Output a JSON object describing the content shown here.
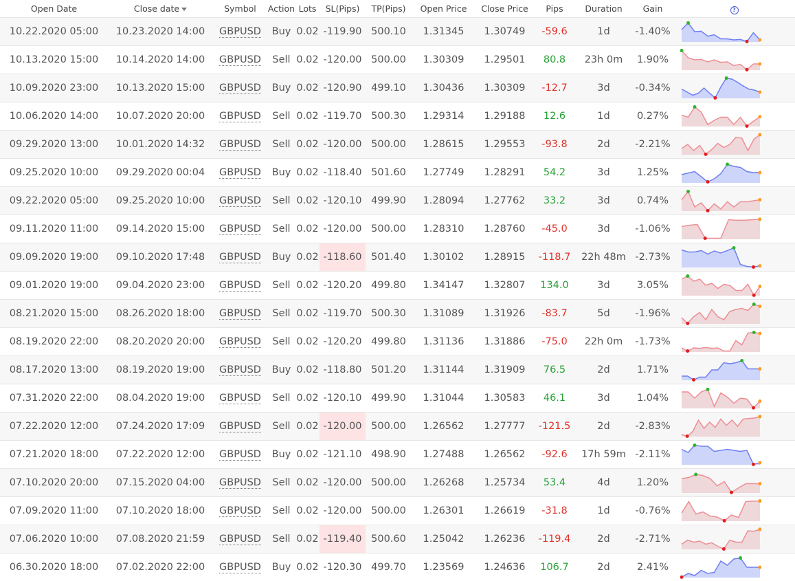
{
  "headers": {
    "open_date": "Open Date",
    "close_date": "Close date",
    "symbol": "Symbol",
    "action": "Action",
    "lots": "Lots",
    "sl": "SL(Pips)",
    "tp": "TP(Pips)",
    "open_price": "Open Price",
    "close_price": "Close Price",
    "pips": "Pips",
    "duration": "Duration",
    "gain": "Gain",
    "help_icon": "?"
  },
  "colors": {
    "buy_line": "#6f7ff0",
    "buy_fill": "#cdd5fb",
    "sell_line": "#ee8e95",
    "sell_fill": "#efd8da",
    "max_point": "#2fb42f",
    "min_point": "#e01f1f",
    "end_point": "#ff9a1f"
  },
  "trades": [
    {
      "open_date": "10.22.2020 05:00",
      "close_date": "10.23.2020 14:00",
      "symbol": "GBPUSD",
      "action": "Buy",
      "lots": "0.02",
      "sl": "-119.90",
      "tp": "500.10",
      "open_price": "1.31345",
      "close_price": "1.30749",
      "pips": "-59.6",
      "duration": "1d",
      "gain": "-1.40%",
      "sl_highlight": false,
      "spark": [
        0.6,
        0.92,
        0.5,
        0.52,
        0.28,
        0.35,
        0.15,
        0.15,
        0.1,
        0.12,
        0.02,
        0.45,
        0.1
      ]
    },
    {
      "open_date": "10.13.2020 15:00",
      "close_date": "10.14.2020 14:00",
      "symbol": "GBPUSD",
      "action": "Sell",
      "lots": "0.02",
      "sl": "-120.00",
      "tp": "500.00",
      "open_price": "1.30309",
      "close_price": "1.29501",
      "pips": "80.8",
      "duration": "23h 0m",
      "gain": "1.90%",
      "sl_highlight": false,
      "spark": [
        0.95,
        0.6,
        0.5,
        0.52,
        0.4,
        0.5,
        0.38,
        0.4,
        0.22,
        0.28,
        0.02,
        0.3,
        0.3
      ]
    },
    {
      "open_date": "10.09.2020 23:00",
      "close_date": "10.13.2020 15:00",
      "symbol": "GBPUSD",
      "action": "Buy",
      "lots": "0.02",
      "sl": "-120.90",
      "tp": "499.10",
      "open_price": "1.30436",
      "close_price": "1.30309",
      "pips": "-12.7",
      "duration": "3d",
      "gain": "-0.34%",
      "sl_highlight": false,
      "spark": [
        0.45,
        0.3,
        0.15,
        0.25,
        0.5,
        0.25,
        0.02,
        0.55,
        0.98,
        0.93,
        0.78,
        0.6,
        0.45,
        0.4,
        0.3
      ]
    },
    {
      "open_date": "10.06.2020 14:00",
      "close_date": "10.07.2020 20:00",
      "symbol": "GBPUSD",
      "action": "Sell",
      "lots": "0.02",
      "sl": "-119.70",
      "tp": "500.30",
      "open_price": "1.29314",
      "close_price": "1.29188",
      "pips": "12.6",
      "duration": "1d",
      "gain": "0.27%",
      "sl_highlight": false,
      "spark": [
        0.55,
        0.45,
        0.95,
        0.7,
        0.1,
        0.3,
        0.45,
        0.45,
        0.1,
        0.45,
        0.02,
        0.25,
        0.48
      ]
    },
    {
      "open_date": "09.29.2020 13:00",
      "close_date": "10.01.2020 14:32",
      "symbol": "GBPUSD",
      "action": "Sell",
      "lots": "0.02",
      "sl": "-120.00",
      "tp": "500.00",
      "open_price": "1.28615",
      "close_price": "1.29553",
      "pips": "-93.8",
      "duration": "2d",
      "gain": "-2.21%",
      "sl_highlight": false,
      "spark": [
        0.3,
        0.5,
        0.2,
        0.45,
        0.02,
        0.25,
        0.55,
        0.35,
        0.5,
        0.85,
        0.8,
        0.2,
        0.75,
        0.97
      ]
    },
    {
      "open_date": "09.25.2020 10:00",
      "close_date": "09.29.2020 00:04",
      "symbol": "GBPUSD",
      "action": "Buy",
      "lots": "0.02",
      "sl": "-118.40",
      "tp": "501.60",
      "open_price": "1.27749",
      "close_price": "1.28291",
      "pips": "54.2",
      "duration": "3d",
      "gain": "1.25%",
      "sl_highlight": false,
      "spark": [
        0.4,
        0.48,
        0.55,
        0.3,
        0.05,
        0.2,
        0.45,
        0.9,
        0.8,
        0.75,
        0.55,
        0.5,
        0.5
      ]
    },
    {
      "open_date": "09.22.2020 05:00",
      "close_date": "09.25.2020 10:00",
      "symbol": "GBPUSD",
      "action": "Sell",
      "lots": "0.02",
      "sl": "-120.10",
      "tp": "499.90",
      "open_price": "1.28094",
      "close_price": "1.27762",
      "pips": "33.2",
      "duration": "3d",
      "gain": "0.74%",
      "sl_highlight": false,
      "spark": [
        0.55,
        0.95,
        0.2,
        0.4,
        0.02,
        0.35,
        0.1,
        0.45,
        0.2,
        0.45,
        0.45,
        0.5,
        0.55
      ]
    },
    {
      "open_date": "09.11.2020 11:00",
      "close_date": "09.14.2020 15:00",
      "symbol": "GBPUSD",
      "action": "Sell",
      "lots": "0.02",
      "sl": "-120.00",
      "tp": "500.00",
      "open_price": "1.28310",
      "close_price": "1.28760",
      "pips": "-45.0",
      "duration": "3d",
      "gain": "-1.06%",
      "sl_highlight": false,
      "spark": [
        0.62,
        0.68,
        0.72,
        0.05,
        0.05,
        0.05,
        0.95,
        0.92,
        0.92,
        0.95,
        0.97
      ]
    },
    {
      "open_date": "09.09.2020 19:00",
      "close_date": "09.10.2020 17:48",
      "symbol": "GBPUSD",
      "action": "Buy",
      "lots": "0.02",
      "sl": "-118.60",
      "tp": "501.40",
      "open_price": "1.30102",
      "close_price": "1.28915",
      "pips": "-118.7",
      "duration": "22h 48m",
      "gain": "-2.73%",
      "sl_highlight": true,
      "spark": [
        0.85,
        0.75,
        0.75,
        0.82,
        0.65,
        0.8,
        0.7,
        0.82,
        0.95,
        0.15,
        0.05,
        0.02,
        0.08
      ]
    },
    {
      "open_date": "09.01.2020 19:00",
      "close_date": "09.04.2020 23:00",
      "symbol": "GBPUSD",
      "action": "Sell",
      "lots": "0.02",
      "sl": "-120.20",
      "tp": "499.80",
      "open_price": "1.34147",
      "close_price": "1.32807",
      "pips": "134.0",
      "duration": "3d",
      "gain": "3.05%",
      "sl_highlight": false,
      "spark": [
        0.8,
        0.95,
        0.7,
        0.8,
        0.5,
        0.6,
        0.35,
        0.55,
        0.5,
        0.25,
        0.25,
        0.55,
        0.02,
        0.45
      ]
    },
    {
      "open_date": "08.21.2020 15:00",
      "close_date": "08.26.2020 18:00",
      "symbol": "GBPUSD",
      "action": "Sell",
      "lots": "0.02",
      "sl": "-119.70",
      "tp": "500.30",
      "open_price": "1.31089",
      "close_price": "1.31926",
      "pips": "-83.7",
      "duration": "5d",
      "gain": "-1.96%",
      "sl_highlight": false,
      "spark": [
        0.3,
        0.02,
        0.35,
        0.55,
        0.2,
        0.7,
        0.35,
        0.2,
        0.6,
        0.7,
        0.75,
        0.65,
        0.95,
        0.85
      ]
    },
    {
      "open_date": "08.19.2020 22:00",
      "close_date": "08.20.2020 20:00",
      "symbol": "GBPUSD",
      "action": "Sell",
      "lots": "0.02",
      "sl": "-120.20",
      "tp": "499.80",
      "open_price": "1.31136",
      "close_price": "1.31886",
      "pips": "-75.0",
      "duration": "22h 0m",
      "gain": "-1.73%",
      "sl_highlight": false,
      "spark": [
        0.2,
        0.05,
        0.2,
        0.18,
        0.22,
        0.18,
        0.2,
        0.05,
        0.05,
        0.55,
        0.35,
        0.92,
        0.95,
        0.9
      ]
    },
    {
      "open_date": "08.17.2020 13:00",
      "close_date": "08.19.2020 19:00",
      "symbol": "GBPUSD",
      "action": "Buy",
      "lots": "0.02",
      "sl": "-118.80",
      "tp": "501.20",
      "open_price": "1.31144",
      "close_price": "1.31909",
      "pips": "76.5",
      "duration": "2d",
      "gain": "1.71%",
      "sl_highlight": false,
      "spark": [
        0.2,
        0.2,
        0.02,
        0.15,
        0.15,
        0.5,
        0.5,
        0.85,
        0.8,
        0.85,
        0.95,
        0.55,
        0.55,
        0.55
      ]
    },
    {
      "open_date": "07.31.2020 22:00",
      "close_date": "08.04.2020 19:00",
      "symbol": "GBPUSD",
      "action": "Sell",
      "lots": "0.02",
      "sl": "-120.10",
      "tp": "499.90",
      "open_price": "1.31044",
      "close_price": "1.30583",
      "pips": "46.1",
      "duration": "3d",
      "gain": "1.04%",
      "sl_highlight": false,
      "spark": [
        0.8,
        0.8,
        0.5,
        0.8,
        0.92,
        0.1,
        0.75,
        0.55,
        0.25,
        0.5,
        0.45,
        0.03,
        0.35
      ]
    },
    {
      "open_date": "07.22.2020 12:00",
      "close_date": "07.24.2020 17:09",
      "symbol": "GBPUSD",
      "action": "Sell",
      "lots": "0.02",
      "sl": "-120.00",
      "tp": "500.00",
      "open_price": "1.26562",
      "close_price": "1.27777",
      "pips": "-121.5",
      "duration": "2d",
      "gain": "-2.83%",
      "sl_highlight": true,
      "spark": [
        0.1,
        0.02,
        0.25,
        0.8,
        0.4,
        0.7,
        0.45,
        0.85,
        0.55,
        0.8,
        0.5,
        0.85,
        0.88,
        0.9,
        0.97
      ]
    },
    {
      "open_date": "07.21.2020 18:00",
      "close_date": "07.22.2020 12:00",
      "symbol": "GBPUSD",
      "action": "Buy",
      "lots": "0.02",
      "sl": "-121.10",
      "tp": "498.90",
      "open_price": "1.27488",
      "close_price": "1.26562",
      "pips": "-92.6",
      "duration": "17h 59m",
      "gain": "-2.11%",
      "sl_highlight": false,
      "spark": [
        0.75,
        0.6,
        0.95,
        0.9,
        0.9,
        0.65,
        0.7,
        0.75,
        0.7,
        0.65,
        0.7,
        0.02,
        0.1
      ]
    },
    {
      "open_date": "07.10.2020 20:00",
      "close_date": "07.15.2020 04:00",
      "symbol": "GBPUSD",
      "action": "Sell",
      "lots": "0.02",
      "sl": "-120.00",
      "tp": "500.00",
      "open_price": "1.26268",
      "close_price": "1.25734",
      "pips": "53.4",
      "duration": "4d",
      "gain": "1.20%",
      "sl_highlight": false,
      "spark": [
        0.7,
        0.75,
        0.9,
        0.85,
        0.7,
        0.35,
        0.55,
        0.03,
        0.25,
        0.45,
        0.45,
        0.45
      ]
    },
    {
      "open_date": "07.09.2020 11:00",
      "close_date": "07.10.2020 18:00",
      "symbol": "GBPUSD",
      "action": "Sell",
      "lots": "0.02",
      "sl": "-120.00",
      "tp": "500.00",
      "open_price": "1.26301",
      "close_price": "1.26619",
      "pips": "-31.8",
      "duration": "1d",
      "gain": "-0.76%",
      "sl_highlight": false,
      "spark": [
        0.4,
        0.95,
        0.35,
        0.45,
        0.25,
        0.2,
        0.02,
        0.3,
        0.18,
        0.95,
        0.97,
        0.98
      ]
    },
    {
      "open_date": "07.06.2020 10:00",
      "close_date": "07.08.2020 21:59",
      "symbol": "GBPUSD",
      "action": "Sell",
      "lots": "0.02",
      "sl": "-119.40",
      "tp": "500.60",
      "open_price": "1.25042",
      "close_price": "1.26236",
      "pips": "-119.4",
      "duration": "2d",
      "gain": "-2.71%",
      "sl_highlight": true,
      "spark": [
        0.25,
        0.45,
        0.35,
        0.4,
        0.25,
        0.32,
        0.15,
        0.02,
        0.45,
        0.35,
        0.35,
        0.9,
        0.88,
        0.97
      ]
    },
    {
      "open_date": "06.30.2020 18:00",
      "close_date": "07.02.2020 22:00",
      "symbol": "GBPUSD",
      "action": "Buy",
      "lots": "0.02",
      "sl": "-120.30",
      "tp": "499.70",
      "open_price": "1.23569",
      "close_price": "1.24636",
      "pips": "106.7",
      "duration": "2d",
      "gain": "2.41%",
      "sl_highlight": false,
      "spark": [
        0.02,
        0.2,
        0.1,
        0.35,
        0.2,
        0.25,
        0.8,
        0.6,
        0.9,
        0.95,
        0.5,
        0.5,
        0.5
      ]
    }
  ]
}
